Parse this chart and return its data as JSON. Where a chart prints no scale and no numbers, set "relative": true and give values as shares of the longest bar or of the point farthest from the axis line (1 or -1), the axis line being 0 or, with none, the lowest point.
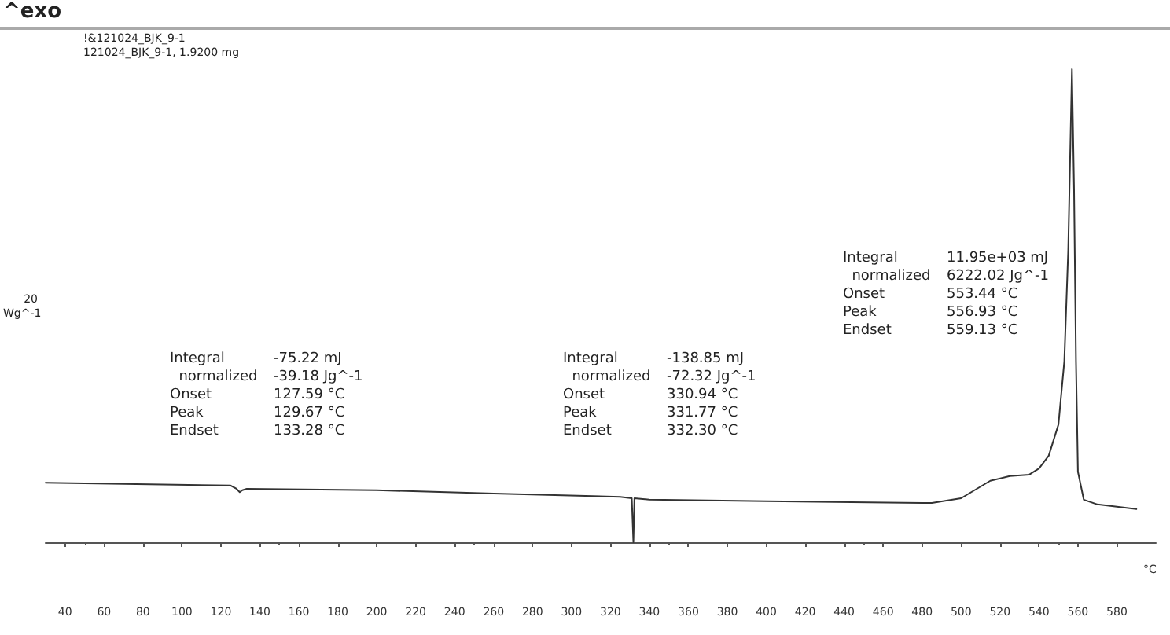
{
  "chart_data": {
    "type": "line",
    "relative": true,
    "xlabel": "°C",
    "ylabel": "Wg^-1",
    "xlim": [
      30,
      600
    ],
    "xticks": [
      40,
      60,
      80,
      100,
      120,
      140,
      160,
      180,
      200,
      220,
      240,
      260,
      280,
      300,
      320,
      340,
      360,
      380,
      400,
      420,
      440,
      460,
      480,
      500,
      520,
      540,
      560,
      580
    ],
    "x": [
      30,
      125,
      128,
      129.67,
      131,
      133.28,
      200,
      260,
      325,
      330.94,
      331.77,
      332.3,
      340,
      400,
      480,
      485,
      500,
      515,
      525,
      535,
      540,
      545,
      550,
      553,
      555,
      556.93,
      558,
      559,
      560,
      563,
      570,
      590
    ],
    "series": [
      {
        "color": "#333333",
        "values": [
          0.126,
          0.12,
          0.113,
          0.106,
          0.11,
          0.113,
          0.11,
          0.103,
          0.096,
          0.093,
          0,
          0.093,
          0.09,
          0.087,
          0.083,
          0.083,
          0.093,
          0.13,
          0.14,
          0.143,
          0.156,
          0.183,
          0.249,
          0.382,
          0.615,
          1,
          0.748,
          0.382,
          0.149,
          0.09,
          0.08,
          0.07
        ]
      }
    ],
    "grid": false,
    "marker": "none",
    "line_style": "solid",
    "annotations": [
      "^exo",
      "!&121024_BJK_9-1",
      "121024_BJK_9-1, 1.9200 mg",
      "20",
      "Integral\t-75.22 mJ\n  normalized\t-39.18 Jg^-1\nOnset\t127.59 °C\nPeak\t129.67 °C\nEndset\t133.28 °C",
      "Integral\t-138.85 mJ\n  normalized\t-72.32 Jg^-1\nOnset\t330.94 °C\nPeak\t331.77 °C\nEndset\t332.30 °C",
      "Integral\t11.95e+03 mJ\n  normalized\t6222.02 Jg^-1\nOnset\t553.44 °C\nPeak\t556.93 °C\nEndset\t559.13 °C"
    ]
  }
}
